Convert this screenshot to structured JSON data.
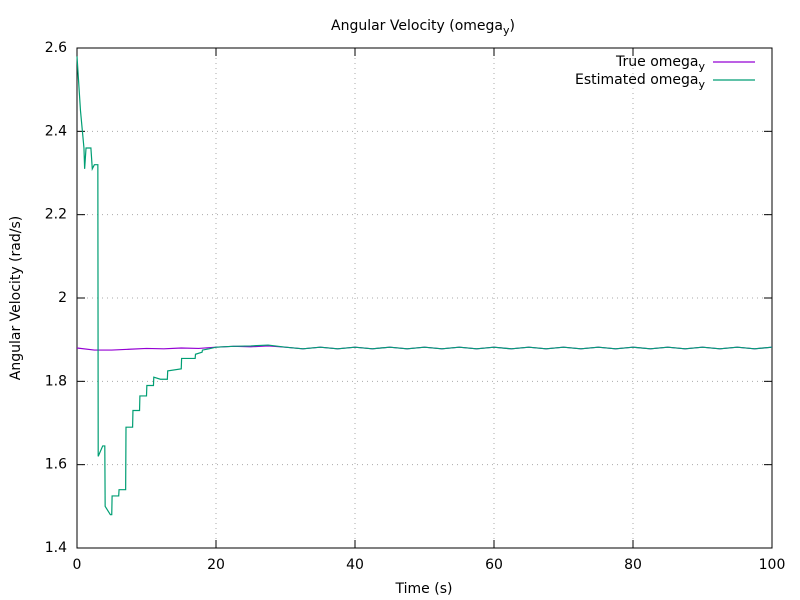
{
  "chart_data": {
    "type": "line",
    "title": [
      "Angular Velocity (omega",
      "y",
      ")"
    ],
    "xlabel": "Time (s)",
    "ylabel": "Angular Velocity (rad/s)",
    "xlim": [
      0,
      100
    ],
    "ylim": [
      1.4,
      2.6
    ],
    "xticks": [
      0,
      20,
      40,
      60,
      80,
      100
    ],
    "yticks": [
      1.4,
      1.6,
      1.8,
      2,
      2.2,
      2.4,
      2.6
    ],
    "grid": true,
    "legend": "top-right",
    "series": [
      {
        "name": [
          "True omega",
          "y"
        ],
        "color": "#9400d3",
        "x": [
          0,
          2.5,
          5,
          7.5,
          10,
          12.5,
          15,
          17.5,
          20,
          22.5,
          25,
          27.5,
          30,
          32.5,
          35,
          37.5,
          40,
          42.5,
          45,
          47.5,
          50,
          52.5,
          55,
          57.5,
          60,
          62.5,
          65,
          67.5,
          70,
          72.5,
          75,
          77.5,
          80,
          82.5,
          85,
          87.5,
          90,
          92.5,
          95,
          97.5,
          100
        ],
        "values": [
          1.88,
          1.875,
          1.875,
          1.877,
          1.879,
          1.878,
          1.88,
          1.879,
          1.882,
          1.884,
          1.883,
          1.885,
          1.882,
          1.878,
          1.882,
          1.878,
          1.882,
          1.878,
          1.882,
          1.878,
          1.882,
          1.878,
          1.882,
          1.878,
          1.882,
          1.878,
          1.882,
          1.878,
          1.882,
          1.878,
          1.882,
          1.878,
          1.882,
          1.878,
          1.882,
          1.878,
          1.882,
          1.878,
          1.882,
          1.878,
          1.882
        ]
      },
      {
        "name": [
          "Estimated omega",
          "y"
        ],
        "color": "#009e73",
        "x": [
          0,
          0.5,
          1,
          1.1,
          1.3,
          2,
          2.2,
          2.5,
          3,
          3.05,
          3.7,
          4,
          4.05,
          4.8,
          5,
          5.05,
          6,
          6.05,
          7,
          7.05,
          8,
          8.05,
          9,
          9.05,
          10,
          10.05,
          11,
          11.05,
          12,
          13,
          13.05,
          15,
          15.05,
          17,
          17.05,
          18,
          18.05,
          19,
          20,
          22.5,
          25,
          27.5,
          30,
          32.5,
          35,
          37.5,
          40,
          42.5,
          45,
          47.5,
          50,
          52.5,
          55,
          57.5,
          60,
          62.5,
          65,
          67.5,
          70,
          72.5,
          75,
          77.5,
          80,
          82.5,
          85,
          87.5,
          90,
          92.5,
          95,
          97.5,
          100
        ],
        "values": [
          2.58,
          2.45,
          2.36,
          2.31,
          2.36,
          2.36,
          2.31,
          2.32,
          2.32,
          1.62,
          1.645,
          1.645,
          1.5,
          1.48,
          1.48,
          1.525,
          1.525,
          1.54,
          1.54,
          1.69,
          1.69,
          1.73,
          1.73,
          1.765,
          1.765,
          1.79,
          1.79,
          1.81,
          1.805,
          1.805,
          1.825,
          1.83,
          1.855,
          1.855,
          1.865,
          1.87,
          1.875,
          1.878,
          1.882,
          1.884,
          1.885,
          1.887,
          1.882,
          1.878,
          1.882,
          1.878,
          1.882,
          1.878,
          1.882,
          1.878,
          1.882,
          1.878,
          1.882,
          1.878,
          1.882,
          1.878,
          1.882,
          1.878,
          1.882,
          1.878,
          1.882,
          1.878,
          1.882,
          1.878,
          1.882,
          1.878,
          1.882,
          1.878,
          1.882,
          1.878,
          1.882
        ]
      }
    ]
  }
}
